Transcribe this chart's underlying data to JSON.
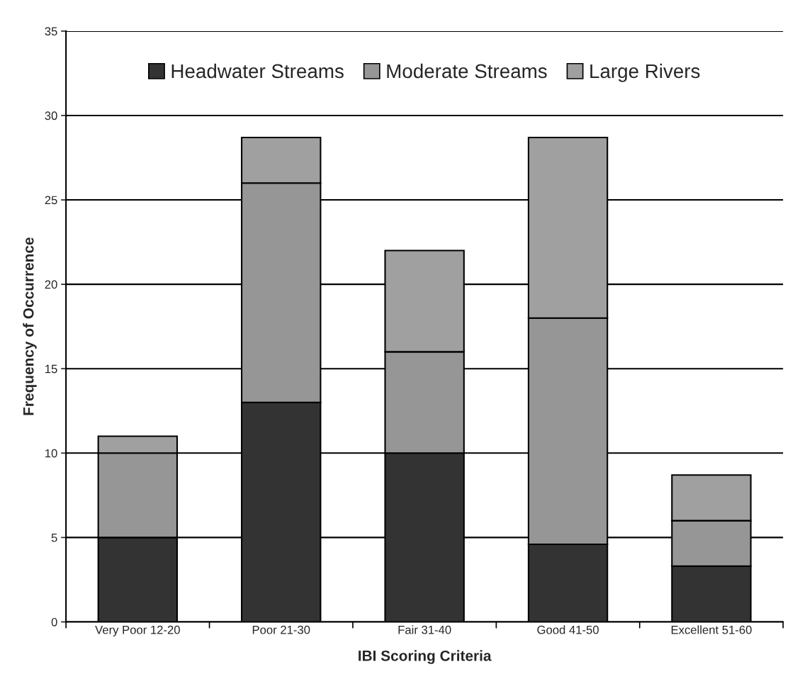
{
  "chart_data": {
    "type": "bar",
    "stacked": true,
    "xlabel": "IBI Scoring Criteria",
    "ylabel": "Frequency of Occurrence",
    "categories": [
      "Very Poor 12-20",
      "Poor 21-30",
      "Fair 31-40",
      "Good 41-50",
      "Excellent 51-60"
    ],
    "series": [
      {
        "name": "Headwater Streams",
        "color": "#333333",
        "values": [
          5,
          13,
          10,
          4.6,
          3.3
        ]
      },
      {
        "name": "Moderate Streams",
        "color": "#969696",
        "values": [
          5,
          13,
          6,
          13.4,
          2.7
        ]
      },
      {
        "name": "Large Rivers",
        "color": "#a0a0a0",
        "values": [
          1,
          2.7,
          6,
          10.7,
          2.7
        ]
      }
    ],
    "ylim": [
      0,
      35
    ],
    "yticks": [
      0,
      5,
      10,
      15,
      20,
      25,
      30,
      35
    ],
    "grid": "y",
    "legend": "top"
  }
}
